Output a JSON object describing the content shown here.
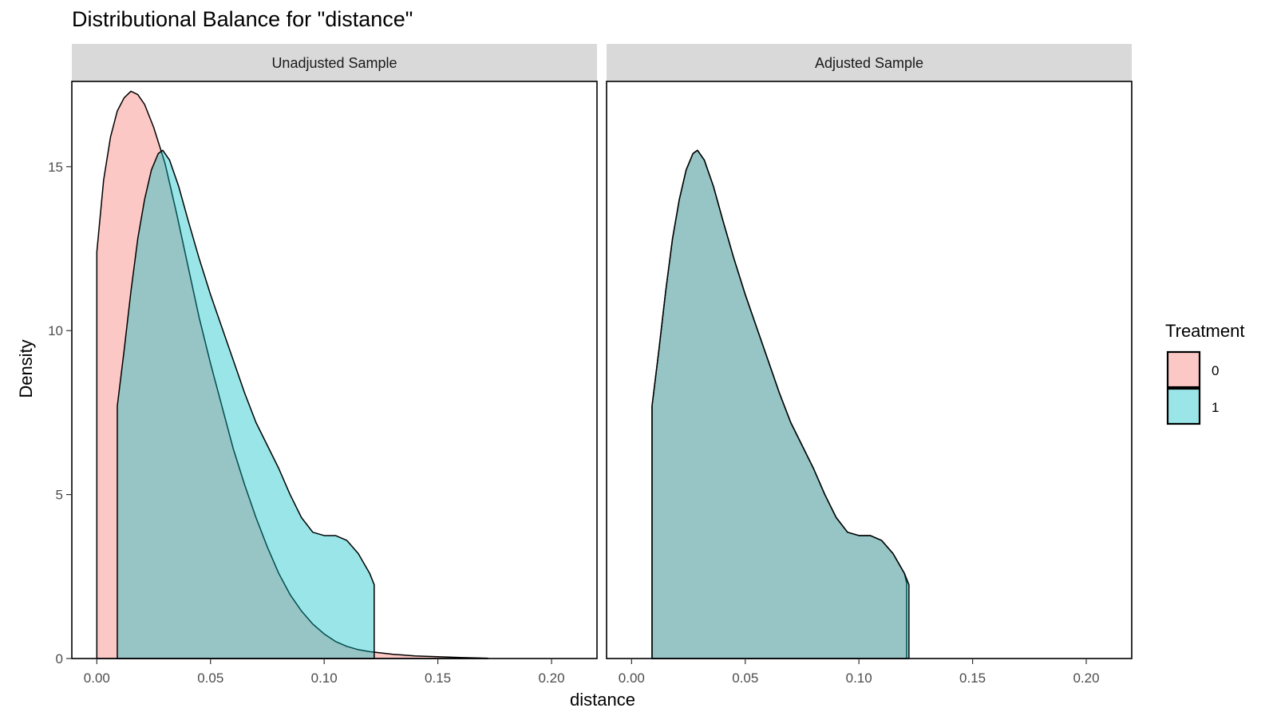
{
  "chart_data": {
    "type": "area",
    "title": "Distributional Balance for \"distance\"",
    "xlabel": "distance",
    "ylabel": "Density",
    "xlim": [
      -0.011,
      0.22
    ],
    "ylim": [
      0,
      17.6
    ],
    "x_ticks": [
      0.0,
      0.05,
      0.1,
      0.15,
      0.2
    ],
    "x_tick_labels": [
      "0.00",
      "0.05",
      "0.10",
      "0.15",
      "0.20"
    ],
    "y_ticks": [
      0,
      5,
      10,
      15
    ],
    "y_tick_labels": [
      "0",
      "5",
      "10",
      "15"
    ],
    "grid": false,
    "legend": {
      "title": "Treatment",
      "placement": "right",
      "entries": [
        {
          "label": "0",
          "color": "#F8766D"
        },
        {
          "label": "1",
          "color": "#00BFC4"
        }
      ]
    },
    "panels": [
      {
        "label": "Unadjusted Sample",
        "series": [
          {
            "group": "0",
            "color": "#F8766D",
            "points": [
              [
                0.0,
                12.4
              ],
              [
                0.003,
                14.6
              ],
              [
                0.006,
                15.9
              ],
              [
                0.009,
                16.7
              ],
              [
                0.012,
                17.1
              ],
              [
                0.015,
                17.3
              ],
              [
                0.018,
                17.2
              ],
              [
                0.021,
                16.9
              ],
              [
                0.025,
                16.2
              ],
              [
                0.03,
                15.1
              ],
              [
                0.035,
                13.6
              ],
              [
                0.04,
                12.0
              ],
              [
                0.045,
                10.4
              ],
              [
                0.05,
                9.0
              ],
              [
                0.055,
                7.7
              ],
              [
                0.06,
                6.4
              ],
              [
                0.065,
                5.3
              ],
              [
                0.07,
                4.3
              ],
              [
                0.075,
                3.4
              ],
              [
                0.08,
                2.6
              ],
              [
                0.085,
                1.95
              ],
              [
                0.09,
                1.45
              ],
              [
                0.095,
                1.05
              ],
              [
                0.1,
                0.75
              ],
              [
                0.105,
                0.52
              ],
              [
                0.11,
                0.37
              ],
              [
                0.115,
                0.27
              ],
              [
                0.12,
                0.21
              ],
              [
                0.125,
                0.17
              ],
              [
                0.13,
                0.13
              ],
              [
                0.14,
                0.08
              ],
              [
                0.15,
                0.055
              ],
              [
                0.16,
                0.03
              ],
              [
                0.172,
                0.01
              ]
            ]
          },
          {
            "group": "1",
            "color": "#00BFC4",
            "points": [
              [
                0.009,
                7.7
              ],
              [
                0.012,
                9.4
              ],
              [
                0.015,
                11.2
              ],
              [
                0.018,
                12.8
              ],
              [
                0.021,
                14.0
              ],
              [
                0.024,
                14.9
              ],
              [
                0.027,
                15.4
              ],
              [
                0.029,
                15.5
              ],
              [
                0.032,
                15.2
              ],
              [
                0.036,
                14.4
              ],
              [
                0.04,
                13.4
              ],
              [
                0.045,
                12.2
              ],
              [
                0.05,
                11.1
              ],
              [
                0.055,
                10.1
              ],
              [
                0.06,
                9.1
              ],
              [
                0.065,
                8.1
              ],
              [
                0.07,
                7.2
              ],
              [
                0.075,
                6.5
              ],
              [
                0.08,
                5.8
              ],
              [
                0.085,
                5.0
              ],
              [
                0.09,
                4.3
              ],
              [
                0.095,
                3.85
              ],
              [
                0.1,
                3.75
              ],
              [
                0.105,
                3.75
              ],
              [
                0.11,
                3.6
              ],
              [
                0.115,
                3.2
              ],
              [
                0.12,
                2.6
              ],
              [
                0.122,
                2.25
              ]
            ]
          }
        ]
      },
      {
        "label": "Adjusted Sample",
        "series": [
          {
            "group": "0",
            "color": "#F8766D",
            "points": [
              [
                0.009,
                7.7
              ],
              [
                0.012,
                9.4
              ],
              [
                0.015,
                11.2
              ],
              [
                0.018,
                12.8
              ],
              [
                0.021,
                14.0
              ],
              [
                0.024,
                14.9
              ],
              [
                0.027,
                15.4
              ],
              [
                0.029,
                15.5
              ],
              [
                0.032,
                15.2
              ],
              [
                0.036,
                14.4
              ],
              [
                0.04,
                13.4
              ],
              [
                0.045,
                12.2
              ],
              [
                0.05,
                11.1
              ],
              [
                0.055,
                10.1
              ],
              [
                0.06,
                9.1
              ],
              [
                0.065,
                8.1
              ],
              [
                0.07,
                7.2
              ],
              [
                0.075,
                6.5
              ],
              [
                0.08,
                5.8
              ],
              [
                0.085,
                5.0
              ],
              [
                0.09,
                4.3
              ],
              [
                0.095,
                3.85
              ],
              [
                0.1,
                3.75
              ],
              [
                0.105,
                3.75
              ],
              [
                0.11,
                3.6
              ],
              [
                0.115,
                3.2
              ],
              [
                0.12,
                2.6
              ],
              [
                0.121,
                2.3
              ]
            ]
          },
          {
            "group": "1",
            "color": "#00BFC4",
            "points": [
              [
                0.009,
                7.7
              ],
              [
                0.012,
                9.4
              ],
              [
                0.015,
                11.2
              ],
              [
                0.018,
                12.8
              ],
              [
                0.021,
                14.0
              ],
              [
                0.024,
                14.9
              ],
              [
                0.027,
                15.4
              ],
              [
                0.029,
                15.5
              ],
              [
                0.032,
                15.2
              ],
              [
                0.036,
                14.4
              ],
              [
                0.04,
                13.4
              ],
              [
                0.045,
                12.2
              ],
              [
                0.05,
                11.1
              ],
              [
                0.055,
                10.1
              ],
              [
                0.06,
                9.1
              ],
              [
                0.065,
                8.1
              ],
              [
                0.07,
                7.2
              ],
              [
                0.075,
                6.5
              ],
              [
                0.08,
                5.8
              ],
              [
                0.085,
                5.0
              ],
              [
                0.09,
                4.3
              ],
              [
                0.095,
                3.85
              ],
              [
                0.1,
                3.75
              ],
              [
                0.105,
                3.75
              ],
              [
                0.11,
                3.6
              ],
              [
                0.115,
                3.2
              ],
              [
                0.12,
                2.6
              ],
              [
                0.122,
                2.25
              ]
            ]
          }
        ]
      }
    ]
  }
}
